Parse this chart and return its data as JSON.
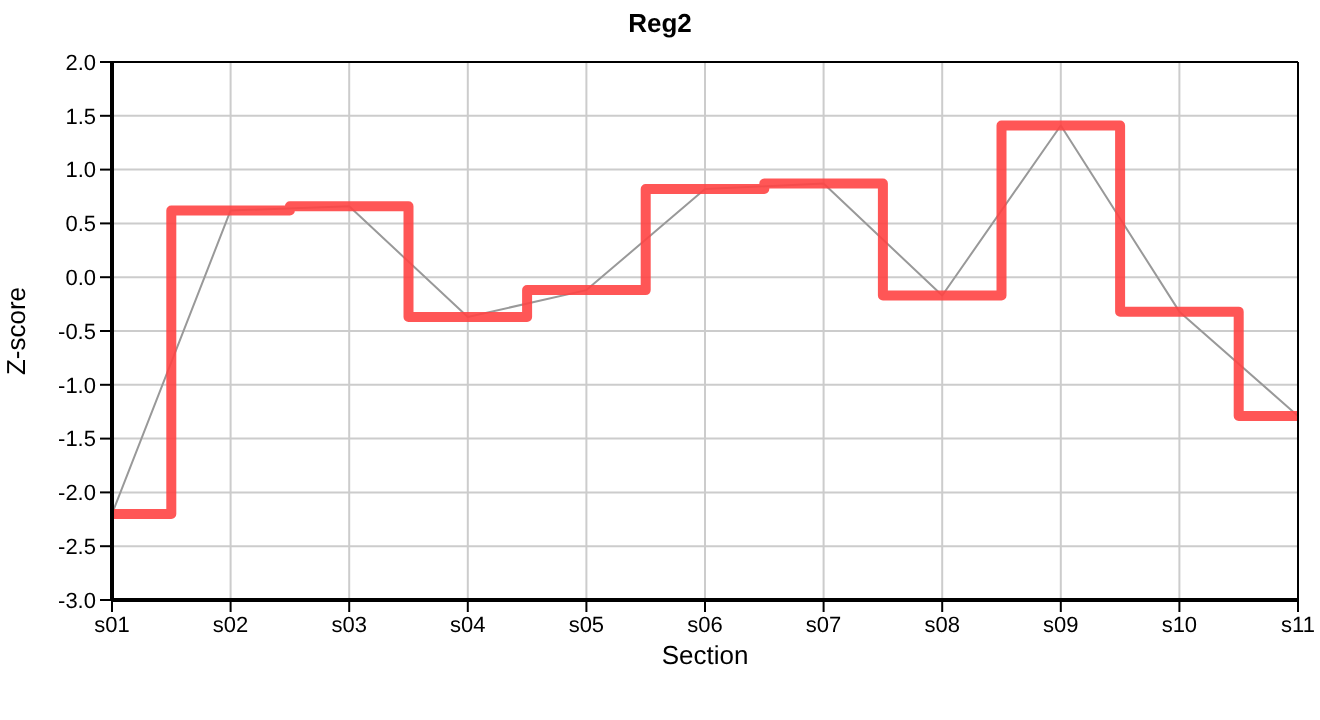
{
  "chart_data": {
    "type": "line",
    "title": "Reg2",
    "xlabel": "Section",
    "ylabel": "Z-score",
    "categories": [
      "s01",
      "s02",
      "s03",
      "s04",
      "s05",
      "s06",
      "s07",
      "s08",
      "s09",
      "s10",
      "s11"
    ],
    "series": [
      {
        "color": "#999999",
        "values": [
          -2.2,
          0.62,
          0.66,
          -0.37,
          -0.12,
          0.82,
          0.87,
          -0.17,
          1.41,
          -0.32,
          -1.29
        ]
      },
      {
        "type": "step",
        "color": "#ff4444",
        "values": [
          -2.2,
          0.62,
          0.66,
          -0.37,
          -0.12,
          0.82,
          0.87,
          -0.17,
          1.41,
          -0.32,
          -1.29
        ]
      }
    ],
    "ylim": [
      -3,
      2
    ],
    "yticks": [
      {
        "value": -3,
        "label": "-3.0"
      },
      {
        "value": -2.5,
        "label": "-2.5"
      },
      {
        "value": -2,
        "label": "-2.0"
      },
      {
        "value": -1.5,
        "label": "-1.5"
      },
      {
        "value": -1,
        "label": "-1.0"
      },
      {
        "value": -0.5,
        "label": "-0.5"
      },
      {
        "value": 0,
        "label": "0.0"
      },
      {
        "value": 0.5,
        "label": "0.5"
      },
      {
        "value": 1,
        "label": "1.0"
      },
      {
        "value": 1.5,
        "label": "1.5"
      },
      {
        "value": 2,
        "label": "2.0"
      }
    ],
    "grid": true,
    "marker": "none"
  }
}
